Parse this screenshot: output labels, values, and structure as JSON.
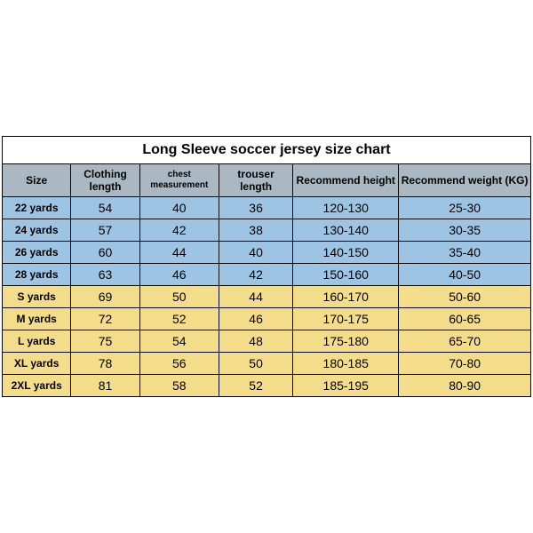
{
  "title": "Long Sleeve soccer jersey size chart",
  "columns": [
    "Size",
    "Clothing length",
    "chest measurement",
    "trouser length",
    "Recommend height",
    "Recommend weight (KG)"
  ],
  "column_widths_pct": [
    13,
    13,
    15,
    14,
    20,
    25
  ],
  "colors": {
    "header_bg": "#a9b8c2",
    "row_blue": "#9ec4e4",
    "row_yellow": "#f3dd8a",
    "border": "#000000",
    "text": "#000000",
    "title_bg": "#ffffff"
  },
  "rows": [
    {
      "group": "youth",
      "size": "22 yards",
      "clothing_length": "54",
      "chest": "40",
      "trouser": "36",
      "height": "120-130",
      "weight": "25-30",
      "bg": "#9ec4e4"
    },
    {
      "group": "youth",
      "size": "24 yards",
      "clothing_length": "57",
      "chest": "42",
      "trouser": "38",
      "height": "130-140",
      "weight": "30-35",
      "bg": "#9ec4e4"
    },
    {
      "group": "youth",
      "size": "26 yards",
      "clothing_length": "60",
      "chest": "44",
      "trouser": "40",
      "height": "140-150",
      "weight": "35-40",
      "bg": "#9ec4e4"
    },
    {
      "group": "youth",
      "size": "28 yards",
      "clothing_length": "63",
      "chest": "46",
      "trouser": "42",
      "height": "150-160",
      "weight": "40-50",
      "bg": "#9ec4e4"
    },
    {
      "group": "adult",
      "size": "S yards",
      "clothing_length": "69",
      "chest": "50",
      "trouser": "44",
      "height": "160-170",
      "weight": "50-60",
      "bg": "#f3dd8a"
    },
    {
      "group": "adult",
      "size": "M yards",
      "clothing_length": "72",
      "chest": "52",
      "trouser": "46",
      "height": "170-175",
      "weight": "60-65",
      "bg": "#f3dd8a"
    },
    {
      "group": "adult",
      "size": "L yards",
      "clothing_length": "75",
      "chest": "54",
      "trouser": "48",
      "height": "175-180",
      "weight": "65-70",
      "bg": "#f3dd8a"
    },
    {
      "group": "adult",
      "size": "XL yards",
      "clothing_length": "78",
      "chest": "56",
      "trouser": "50",
      "height": "180-185",
      "weight": "70-80",
      "bg": "#f3dd8a"
    },
    {
      "group": "adult",
      "size": "2XL yards",
      "clothing_length": "81",
      "chest": "58",
      "trouser": "52",
      "height": "185-195",
      "weight": "80-90",
      "bg": "#f3dd8a"
    }
  ]
}
